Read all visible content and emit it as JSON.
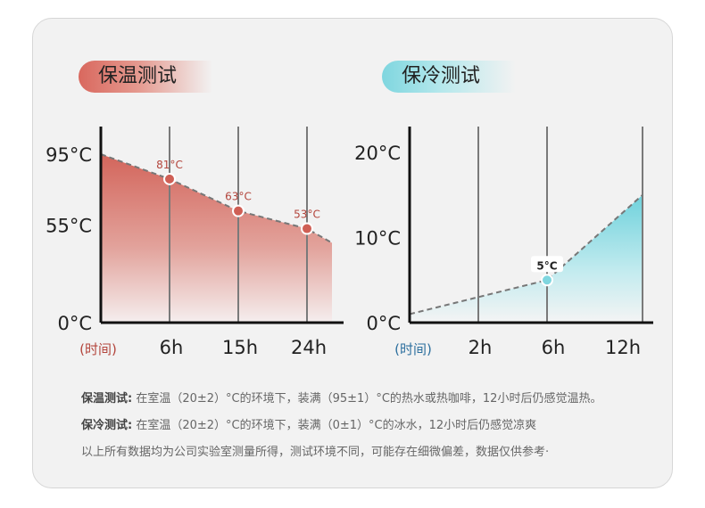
{
  "chart_data": [
    {
      "type": "area",
      "title": "保温测试",
      "y_tick_labels": [
        "95°C",
        "55°C",
        "0°C"
      ],
      "y_ticks": [
        95,
        55,
        0
      ],
      "x_tick_labels": [
        "(时间)",
        "6h",
        "15h",
        "24h"
      ],
      "x": [
        0,
        6,
        15,
        24,
        30
      ],
      "y": [
        95,
        81,
        63,
        53,
        45
      ],
      "point_labels": [
        {
          "x": 6,
          "y": 81,
          "label": "81°C"
        },
        {
          "x": 15,
          "y": 63,
          "label": "63°C"
        },
        {
          "x": 24,
          "y": 53,
          "label": "53°C"
        }
      ],
      "color": "#d05f55"
    },
    {
      "type": "area",
      "title": "保冷测试",
      "y_tick_labels": [
        "20°C",
        "10°C",
        "0°C"
      ],
      "y_ticks": [
        20,
        10,
        0
      ],
      "x_tick_labels": [
        "(时间)",
        "2h",
        "6h",
        "12h"
      ],
      "x": [
        0,
        2,
        6,
        12
      ],
      "y": [
        1,
        3,
        5,
        15
      ],
      "point_labels": [
        {
          "x": 6,
          "y": 5,
          "label": "5°C"
        }
      ],
      "color": "#7fd6df"
    }
  ],
  "notes": {
    "warm_label": "保温测试:",
    "warm_text": "在室温（20±2）°C的环境下，装满（95±1）°C的热水或热咖啡，12小时后仍感觉温热。",
    "cool_label": "保冷测试:",
    "cool_text": "在室温（20±2）°C的环境下，装满（0±1）°C的冰水，12小时后仍感觉凉爽",
    "disclaimer": "以上所有数据均为公司实验室测量所得，测试环境不同，可能存在细微偏差，数据仅供参考·"
  }
}
